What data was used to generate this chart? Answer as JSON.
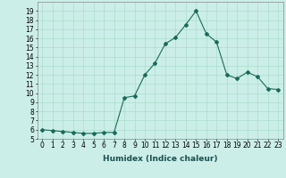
{
  "x": [
    0,
    1,
    2,
    3,
    4,
    5,
    6,
    7,
    8,
    9,
    10,
    11,
    12,
    13,
    14,
    15,
    16,
    17,
    18,
    19,
    20,
    21,
    22,
    23
  ],
  "y": [
    6.0,
    5.9,
    5.8,
    5.7,
    5.6,
    5.6,
    5.7,
    5.7,
    9.5,
    9.7,
    12.0,
    13.3,
    15.4,
    16.1,
    17.5,
    19.0,
    16.5,
    15.6,
    12.0,
    11.6,
    12.3,
    11.8,
    10.5,
    10.4
  ],
  "line_color": "#1a6b5a",
  "marker": "D",
  "marker_size": 2,
  "bg_color": "#cceee8",
  "grid_color": "#aaddcc",
  "xlabel": "Humidex (Indice chaleur)",
  "xlim": [
    -0.5,
    23.5
  ],
  "ylim": [
    5,
    20
  ],
  "yticks": [
    5,
    6,
    7,
    8,
    9,
    10,
    11,
    12,
    13,
    14,
    15,
    16,
    17,
    18,
    19
  ],
  "xticks": [
    0,
    1,
    2,
    3,
    4,
    5,
    6,
    7,
    8,
    9,
    10,
    11,
    12,
    13,
    14,
    15,
    16,
    17,
    18,
    19,
    20,
    21,
    22,
    23
  ],
  "tick_fontsize": 5.5,
  "label_fontsize": 6.5
}
